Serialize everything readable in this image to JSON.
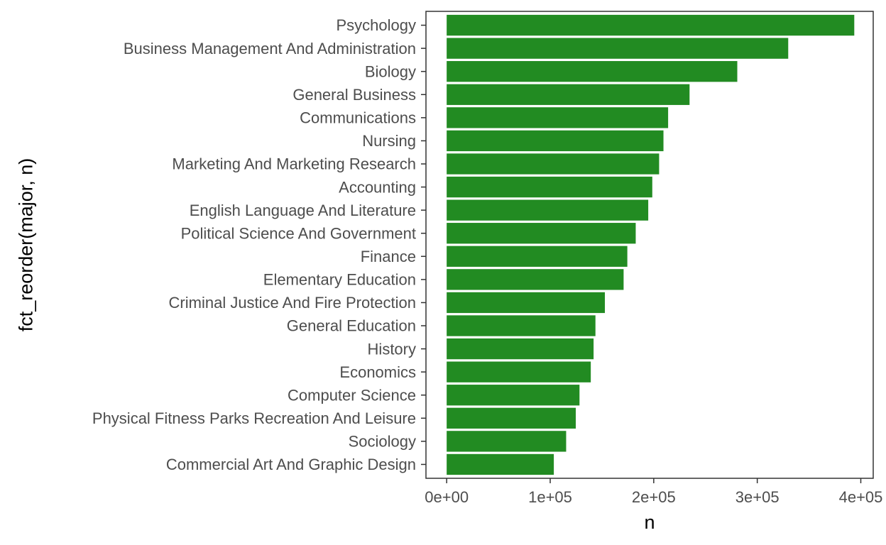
{
  "chart_data": {
    "type": "bar",
    "orientation": "horizontal",
    "xlabel": "n",
    "ylabel": "fct_reorder(major, n)",
    "categories": [
      "Psychology",
      "Business Management And Administration",
      "Biology",
      "General Business",
      "Communications",
      "Nursing",
      "Marketing And Marketing Research",
      "Accounting",
      "English Language And Literature",
      "Political Science And Government",
      "Finance",
      "Elementary Education",
      "Criminal Justice And Fire Protection",
      "General Education",
      "History",
      "Economics",
      "Computer Science",
      "Physical Fitness Parks Recreation And Leisure",
      "Sociology",
      "Commercial Art And Graphic Design"
    ],
    "values": [
      393700,
      329900,
      280700,
      234600,
      213900,
      209400,
      205200,
      198600,
      194700,
      182600,
      174500,
      170900,
      152800,
      143700,
      141900,
      139200,
      128300,
      124700,
      115400,
      103500
    ],
    "xticks": [
      "0e+00",
      "1e+05",
      "2e+05",
      "3e+05",
      "4e+05"
    ],
    "xtick_values": [
      0,
      100000,
      200000,
      300000,
      400000
    ],
    "xlim": [
      -20000,
      412000
    ],
    "bar_color": "#228b22",
    "panel_border_color": "#333333",
    "grid": false,
    "legend": "none"
  }
}
